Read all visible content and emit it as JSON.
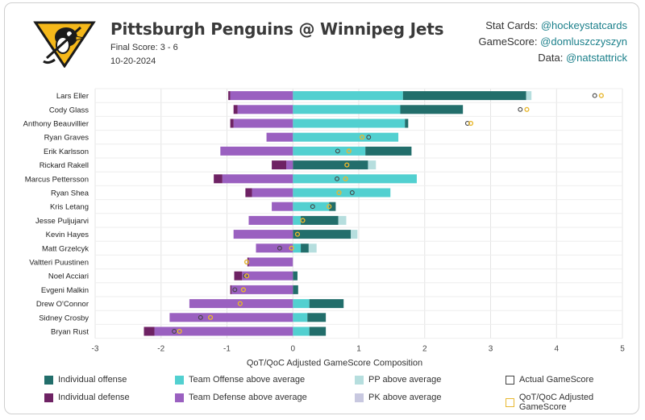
{
  "header": {
    "title": "Pittsburgh Penguins @ Winnipeg Jets",
    "subtitle": "Final Score: 3 - 6",
    "date": "10-20-2024"
  },
  "credits": [
    {
      "label": "Stat Cards:",
      "handle": "@hockeystatcards"
    },
    {
      "label": "GameScore:",
      "handle": "@domluszczyszyn"
    },
    {
      "label": "Data:",
      "handle": "@natstattrick"
    }
  ],
  "colors": {
    "individual_offense": "#226e6b",
    "team_offense": "#52d0d0",
    "pp": "#b6dede",
    "individual_defense": "#6e2264",
    "team_defense": "#9a60c0",
    "pk": "#c8c8e0",
    "actual_marker": "#444444",
    "qoq_marker": "#e8b830"
  },
  "legend": [
    {
      "key": "individual_offense",
      "label": "Individual offense",
      "style": "fill",
      "color": "#226e6b"
    },
    {
      "key": "team_offense",
      "label": "Team Offense above average",
      "style": "fill",
      "color": "#52d0d0"
    },
    {
      "key": "pp",
      "label": "PP above average",
      "style": "fill",
      "color": "#b6dede"
    },
    {
      "key": "actual",
      "label": "Actual GameScore",
      "style": "outline",
      "color": "#444444"
    },
    {
      "key": "individual_defense",
      "label": "Individual defense",
      "style": "fill",
      "color": "#6e2264"
    },
    {
      "key": "team_defense",
      "label": "Team Defense above average",
      "style": "fill",
      "color": "#9a60c0"
    },
    {
      "key": "pk",
      "label": "PK above average",
      "style": "fill",
      "color": "#c8c8e0"
    },
    {
      "key": "qoq",
      "label": "QoT/QoC Adjusted GameScore",
      "style": "outline",
      "color": "#e8b830"
    }
  ],
  "chart_data": {
    "type": "bar",
    "orientation": "horizontal-stacked",
    "xlabel": "QoT/QoC Adjusted GameScore Composition",
    "xlim": [
      -3,
      5
    ],
    "xticks": [
      -3,
      -2,
      -1,
      0,
      1,
      2,
      3,
      4,
      5
    ],
    "grid": true,
    "players": [
      {
        "name": "Lars Eller",
        "pos": {
          "team_off": 1.67,
          "ind_off": 1.87,
          "pp": 0.08
        },
        "neg": {
          "team_def": 0.95,
          "ind_def": 0.03,
          "pk": 0
        },
        "actual": 4.58,
        "qoq": 4.68
      },
      {
        "name": "Cody Glass",
        "pos": {
          "team_off": 1.63,
          "ind_off": 0.95,
          "pp": 0
        },
        "neg": {
          "team_def": 0.84,
          "ind_def": 0.06,
          "pk": 0
        },
        "actual": 3.45,
        "qoq": 3.55
      },
      {
        "name": "Anthony Beauvillier",
        "pos": {
          "team_off": 1.7,
          "ind_off": 0.05,
          "pp": 0
        },
        "neg": {
          "team_def": 0.9,
          "ind_def": 0.05,
          "pk": 0
        },
        "actual": 2.65,
        "qoq": 2.7
      },
      {
        "name": "Ryan Graves",
        "pos": {
          "team_off": 1.6,
          "ind_off": 0,
          "pp": 0
        },
        "neg": {
          "team_def": 0.4,
          "ind_def": 0,
          "pk": 0
        },
        "actual": 1.15,
        "qoq": 1.05
      },
      {
        "name": "Erik Karlsson",
        "pos": {
          "team_off": 1.1,
          "ind_off": 0.7,
          "pp": 0
        },
        "neg": {
          "team_def": 1.1,
          "ind_def": 0,
          "pk": 0
        },
        "actual": 0.68,
        "qoq": 0.85
      },
      {
        "name": "Rickard Rakell",
        "pos": {
          "team_off": 0,
          "ind_off": 1.14,
          "pp": 0.12
        },
        "neg": {
          "team_def": 0.1,
          "ind_def": 0.22,
          "pk": 0
        },
        "actual": 0.82,
        "qoq": 0.82
      },
      {
        "name": "Marcus Pettersson",
        "pos": {
          "team_off": 1.88,
          "ind_off": 0,
          "pp": 0
        },
        "neg": {
          "team_def": 1.07,
          "ind_def": 0.13,
          "pk": 0
        },
        "actual": 0.67,
        "qoq": 0.8
      },
      {
        "name": "Ryan Shea",
        "pos": {
          "team_off": 1.48,
          "ind_off": 0,
          "pp": 0
        },
        "neg": {
          "team_def": 0.62,
          "ind_def": 0.1,
          "pk": 0
        },
        "actual": 0.9,
        "qoq": 0.7
      },
      {
        "name": "Kris Letang",
        "pos": {
          "team_off": 0.55,
          "ind_off": 0.1,
          "pp": 0
        },
        "neg": {
          "team_def": 0.32,
          "ind_def": 0,
          "pk": 0
        },
        "actual": 0.3,
        "qoq": 0.55
      },
      {
        "name": "Jesse Puljujarvi",
        "pos": {
          "team_off": 0.12,
          "ind_off": 0.57,
          "pp": 0.12
        },
        "neg": {
          "team_def": 0.67,
          "ind_def": 0,
          "pk": 0
        },
        "actual": 0.15,
        "qoq": 0.15
      },
      {
        "name": "Kevin Hayes",
        "pos": {
          "team_off": 0,
          "ind_off": 0.88,
          "pp": 0.1
        },
        "neg": {
          "team_def": 0.9,
          "ind_def": 0,
          "pk": 0
        },
        "actual": 0.07,
        "qoq": 0.07
      },
      {
        "name": "Matt Grzelcyk",
        "pos": {
          "team_off": 0.12,
          "ind_off": 0.12,
          "pp": 0.12
        },
        "neg": {
          "team_def": 0.56,
          "ind_def": 0,
          "pk": 0
        },
        "actual": -0.2,
        "qoq": -0.02
      },
      {
        "name": "Valtteri Puustinen",
        "pos": {
          "team_off": 0,
          "ind_off": 0,
          "pp": 0
        },
        "neg": {
          "team_def": 0.67,
          "ind_def": 0.02,
          "pk": 0
        },
        "actual": -0.7,
        "qoq": -0.7
      },
      {
        "name": "Noel Acciari",
        "pos": {
          "team_off": 0,
          "ind_off": 0.07,
          "pp": 0
        },
        "neg": {
          "team_def": 0.77,
          "ind_def": 0.12,
          "pk": 0
        },
        "actual": -0.72,
        "qoq": -0.7
      },
      {
        "name": "Evgeni Malkin",
        "pos": {
          "team_off": 0,
          "ind_off": 0.08,
          "pp": 0
        },
        "neg": {
          "team_def": 0.93,
          "ind_def": 0.02,
          "pk": 0
        },
        "actual": -0.88,
        "qoq": -0.75
      },
      {
        "name": "Drew O'Connor",
        "pos": {
          "team_off": 0.25,
          "ind_off": 0.52,
          "pp": 0
        },
        "neg": {
          "team_def": 1.57,
          "ind_def": 0,
          "pk": 0
        },
        "actual": -0.8,
        "qoq": -0.8
      },
      {
        "name": "Sidney Crosby",
        "pos": {
          "team_off": 0.22,
          "ind_off": 0.28,
          "pp": 0
        },
        "neg": {
          "team_def": 1.87,
          "ind_def": 0,
          "pk": 0
        },
        "actual": -1.4,
        "qoq": -1.25
      },
      {
        "name": "Bryan Rust",
        "pos": {
          "team_off": 0.25,
          "ind_off": 0.25,
          "pp": 0
        },
        "neg": {
          "team_def": 2.1,
          "ind_def": 0.16,
          "pk": 0
        },
        "actual": -1.8,
        "qoq": -1.72
      }
    ]
  }
}
